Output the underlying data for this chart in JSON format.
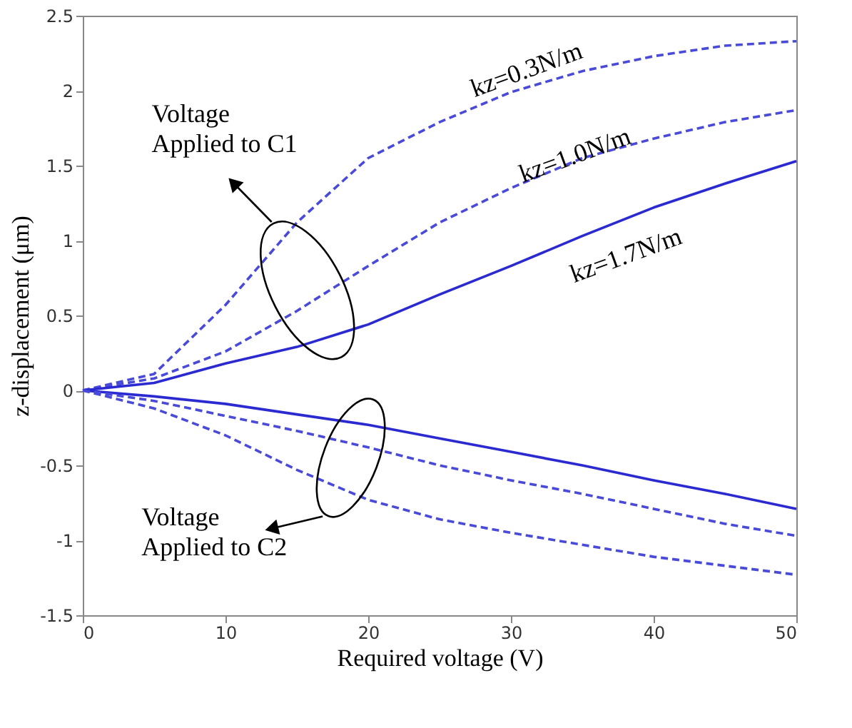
{
  "chart_data": {
    "type": "line",
    "xlabel": "Required voltage (V)",
    "ylabel": "z-displacement (μm)",
    "x": [
      0,
      5,
      10,
      15,
      20,
      25,
      30,
      35,
      40,
      45,
      50
    ],
    "xlim": [
      0,
      50
    ],
    "xticks": [
      0,
      10,
      20,
      30,
      40,
      50
    ],
    "ylim": [
      -1.5,
      2.5
    ],
    "yticks": [
      -1.5,
      -1,
      -0.5,
      0,
      0.5,
      1,
      1.5,
      2,
      2.5
    ],
    "grid": false,
    "legend": false,
    "marker": "none",
    "series": [
      {
        "color": "#4a4ad8",
        "line_style": "dashed",
        "values": [
          0,
          0.11,
          0.57,
          1.12,
          1.55,
          1.79,
          1.99,
          2.13,
          2.23,
          2.3,
          2.33
        ]
      },
      {
        "color": "#4a4ad8",
        "line_style": "dashed",
        "values": [
          0,
          0.08,
          0.26,
          0.53,
          0.83,
          1.12,
          1.35,
          1.55,
          1.68,
          1.79,
          1.87
        ]
      },
      {
        "color": "#2a2ad0",
        "line_style": "solid",
        "values": [
          0,
          0.05,
          0.18,
          0.29,
          0.44,
          0.64,
          0.83,
          1.03,
          1.22,
          1.38,
          1.53
        ]
      },
      {
        "color": "#2a2ad0",
        "line_style": "solid",
        "values": [
          0,
          -0.04,
          -0.09,
          -0.16,
          -0.23,
          -0.32,
          -0.41,
          -0.5,
          -0.6,
          -0.69,
          -0.79
        ]
      },
      {
        "color": "#4a4ad8",
        "line_style": "dashed",
        "values": [
          0,
          -0.07,
          -0.17,
          -0.27,
          -0.38,
          -0.5,
          -0.6,
          -0.69,
          -0.79,
          -0.89,
          -0.97
        ]
      },
      {
        "color": "#4a4ad8",
        "line_style": "dashed",
        "values": [
          0,
          -0.12,
          -0.3,
          -0.53,
          -0.73,
          -0.86,
          -0.95,
          -1.03,
          -1.11,
          -1.17,
          -1.23
        ]
      }
    ],
    "annotations": [
      "kz=0.3N/m",
      "kz=1.0N/m",
      "kz=1.7N/m",
      "Voltage\nApplied to C1",
      "Voltage\nApplied to C2"
    ]
  }
}
